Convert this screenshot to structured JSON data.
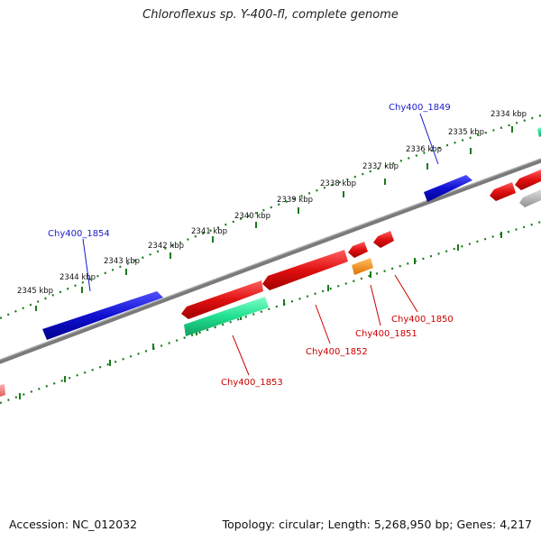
{
  "title": "Chloroflexus sp. Y-400-fl, complete genome",
  "footer": {
    "accession": "Accession: NC_012032",
    "summary": "Topology: circular; Length: 5,268,950 bp; Genes: 4,217"
  },
  "ticks": [
    {
      "label": "2345 kbp"
    },
    {
      "label": "2344 kbp"
    },
    {
      "label": "2343 kbp"
    },
    {
      "label": "2342 kbp"
    },
    {
      "label": "2341 kbp"
    },
    {
      "label": "2340 kbp"
    },
    {
      "label": "2339 kbp"
    },
    {
      "label": "2338 kbp"
    },
    {
      "label": "2337 kbp"
    },
    {
      "label": "2336 kbp"
    },
    {
      "label": "2335 kbp"
    },
    {
      "label": "2334 kbp"
    }
  ],
  "genes": {
    "chy1849": {
      "label": "Chy400_1849",
      "color": "#1a1acc"
    },
    "chy1854": {
      "label": "Chy400_1854",
      "color": "#1a1acc"
    },
    "chy1850": {
      "label": "Chy400_1850",
      "color": "#cc0000"
    },
    "chy1851": {
      "label": "Chy400_1851",
      "color": "#cc0000"
    },
    "chy1852": {
      "label": "Chy400_1852",
      "color": "#cc0000"
    },
    "chy1853": {
      "label": "Chy400_1853",
      "color": "#cc0000"
    }
  },
  "colors": {
    "forward_cds": "#1010d0",
    "reverse_cds": "#e01010",
    "rna": "#20e090",
    "misc": "#ff8c00",
    "backbone": "#808080",
    "tick": "#1a7a1a"
  }
}
